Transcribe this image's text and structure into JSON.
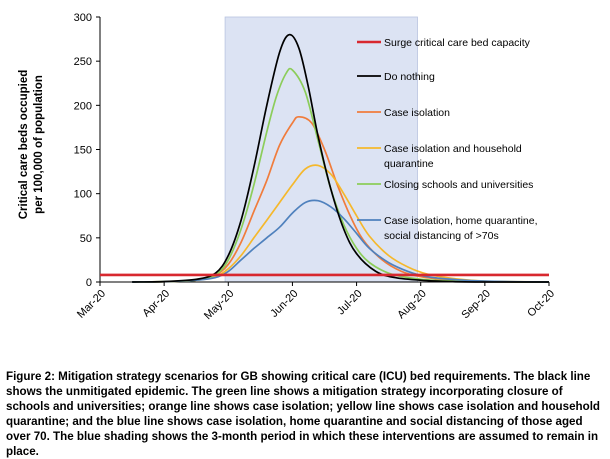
{
  "chart_data": {
    "type": "line",
    "ylabel_lines": [
      "Critical care beds occupied",
      "per 100,000 of population"
    ],
    "xlabel": "",
    "ylim": [
      0,
      300
    ],
    "yticks": [
      0,
      50,
      100,
      150,
      200,
      250,
      300
    ],
    "xticks": [
      "Mar-20",
      "Apr-20",
      "May-20",
      "Jun-20",
      "Jul-20",
      "Aug-20",
      "Sep-20",
      "Oct-20"
    ],
    "shaded_period": {
      "from_month": 1.95,
      "to_month": 4.95
    },
    "series": [
      {
        "name": "Surge critical care bed capacity",
        "color": "#d8282f",
        "x": [
          0,
          7
        ],
        "values": [
          8,
          8
        ]
      },
      {
        "name": "Do nothing",
        "color": "#000000",
        "x": [
          0.5,
          1.0,
          1.5,
          1.8,
          2.0,
          2.2,
          2.4,
          2.6,
          2.8,
          2.95,
          3.1,
          3.25,
          3.4,
          3.6,
          3.8,
          4.0,
          4.3,
          4.6,
          5.0,
          5.5,
          6.0,
          7.0
        ],
        "values": [
          0,
          0.5,
          3,
          10,
          30,
          70,
          130,
          200,
          260,
          280,
          265,
          220,
          165,
          105,
          60,
          32,
          12,
          5,
          2,
          0.5,
          0,
          0
        ]
      },
      {
        "name": "Case isolation",
        "color": "#f07c3c",
        "x": [
          0.5,
          1.0,
          1.5,
          1.8,
          2.0,
          2.2,
          2.4,
          2.6,
          2.8,
          3.0,
          3.1,
          3.3,
          3.5,
          3.7,
          3.9,
          4.1,
          4.4,
          4.7,
          5.0,
          5.5,
          6.0,
          7.0
        ],
        "values": [
          0,
          0.5,
          2,
          8,
          20,
          45,
          80,
          115,
          155,
          180,
          187,
          180,
          150,
          110,
          75,
          48,
          25,
          12,
          6,
          2,
          0.5,
          0
        ]
      },
      {
        "name": "Case isolation and household quarantine",
        "color": "#f5b82c",
        "x": [
          0.5,
          1.0,
          1.5,
          1.8,
          2.0,
          2.2,
          2.4,
          2.6,
          2.8,
          3.0,
          3.2,
          3.4,
          3.6,
          3.8,
          4.0,
          4.2,
          4.5,
          4.8,
          5.1,
          5.5,
          6.0,
          7.0
        ],
        "values": [
          0,
          0.5,
          2,
          6,
          15,
          30,
          50,
          70,
          90,
          110,
          128,
          132,
          122,
          100,
          75,
          52,
          30,
          17,
          9,
          4,
          1,
          0
        ]
      },
      {
        "name": "Closing schools and universities",
        "color": "#8ccd5a",
        "x": [
          0.5,
          1.0,
          1.5,
          1.8,
          2.0,
          2.2,
          2.4,
          2.6,
          2.75,
          2.9,
          3.0,
          3.2,
          3.4,
          3.6,
          3.8,
          4.0,
          4.2,
          4.5,
          4.8,
          5.2,
          6.0,
          7.0
        ],
        "values": [
          0,
          0.5,
          2,
          8,
          25,
          60,
          110,
          170,
          210,
          236,
          240,
          215,
          160,
          105,
          65,
          38,
          22,
          10,
          5,
          2,
          0.5,
          0
        ]
      },
      {
        "name": "Case isolation, home quarantine, social distancing of >70s",
        "color": "#4f81bd",
        "x": [
          0.5,
          1.0,
          1.5,
          1.8,
          2.0,
          2.2,
          2.4,
          2.6,
          2.8,
          3.0,
          3.2,
          3.4,
          3.6,
          3.8,
          4.0,
          4.2,
          4.5,
          4.8,
          5.1,
          5.5,
          6.0,
          7.0
        ],
        "values": [
          0,
          0.5,
          2,
          5,
          12,
          25,
          38,
          50,
          62,
          78,
          90,
          92,
          85,
          72,
          55,
          38,
          22,
          12,
          6,
          3,
          1,
          0
        ]
      }
    ],
    "legend": [
      {
        "lines": [
          "Surge critical care bed capacity"
        ]
      },
      {
        "lines": [
          "Do nothing"
        ]
      },
      {
        "lines": [
          "Case isolation"
        ]
      },
      {
        "lines": [
          "Case isolation and household",
          "quarantine"
        ]
      },
      {
        "lines": [
          "Closing schools and universities"
        ]
      },
      {
        "lines": [
          "Case isolation, home quarantine,",
          "social distancing of >70s"
        ]
      }
    ],
    "legend_placement": "right, inside plot",
    "grid": false,
    "shade_color": "#dce3f3"
  },
  "caption": "Figure 2: Mitigation strategy scenarios for GB showing critical care (ICU) bed requirements. The black line shows the unmitigated epidemic. The green line shows a mitigation strategy incorporating closure of schools and universities; orange line shows case isolation; yellow line shows case isolation and household quarantine; and the blue line shows case isolation, home quarantine and social distancing of those aged over 70. The blue shading shows the 3-month period in which these interventions are assumed to remain in place."
}
